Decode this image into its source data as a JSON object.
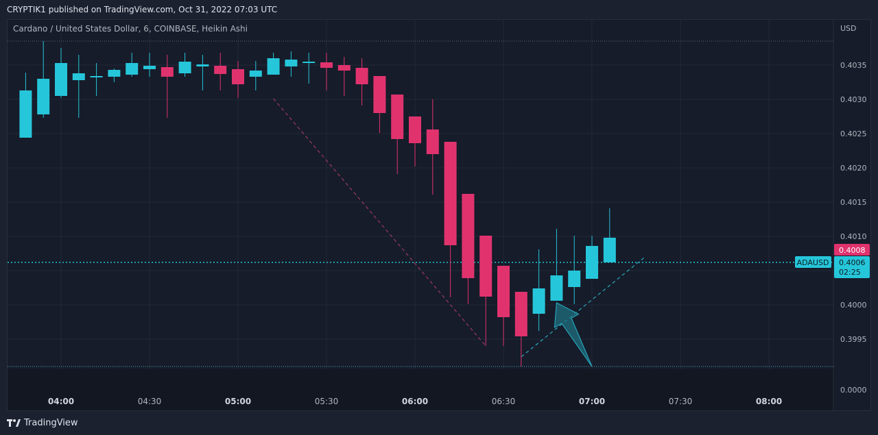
{
  "header": {
    "publish_line": "CRYPTIK1 published on TradingView.com, Oct 31, 2022 07:03 UTC"
  },
  "footer": {
    "brand": "TradingView"
  },
  "colors": {
    "up": "#26c6da",
    "down": "#e0336e",
    "grid": "#222938",
    "text": "#b2b5be",
    "pane": "#161c2a"
  },
  "chart_data": {
    "type": "candlestick",
    "title": "Cardano / United States Dollar, 6, COINBASE, Heikin Ashi",
    "currency": "USD",
    "symbol": "ADAUSD",
    "x_unit": "time",
    "x_ticks": [
      "04:00",
      "04:30",
      "05:00",
      "05:30",
      "06:00",
      "06:30",
      "07:00",
      "07:30",
      "08:00"
    ],
    "x_ticks_bold": [
      "04:00",
      "05:00",
      "06:00",
      "07:00",
      "08:00"
    ],
    "xlim": [
      "03:49",
      "08:22"
    ],
    "y_ticks": [
      "0.4035",
      "0.4030",
      "0.4025",
      "0.4020",
      "0.4015",
      "0.4010",
      "0.4005",
      "0.4000",
      "0.3995"
    ],
    "y_axis_bottom_label": "0.0000",
    "ylim": [
      0.39905,
      0.40385
    ],
    "candles": [
      {
        "t": "03:48",
        "o": 0.40244,
        "h": 0.40339,
        "l": 0.40244,
        "c": 0.40313
      },
      {
        "t": "03:54",
        "o": 0.40278,
        "h": 0.40385,
        "l": 0.40273,
        "c": 0.4033
      },
      {
        "t": "04:00",
        "o": 0.40305,
        "h": 0.40375,
        "l": 0.40302,
        "c": 0.40353
      },
      {
        "t": "04:06",
        "o": 0.40328,
        "h": 0.40365,
        "l": 0.40273,
        "c": 0.40338
      },
      {
        "t": "04:12",
        "o": 0.40334,
        "h": 0.40353,
        "l": 0.40305,
        "c": 0.40334
      },
      {
        "t": "04:18",
        "o": 0.40333,
        "h": 0.40345,
        "l": 0.40325,
        "c": 0.40343
      },
      {
        "t": "04:24",
        "o": 0.40336,
        "h": 0.40368,
        "l": 0.40333,
        "c": 0.40353
      },
      {
        "t": "04:30",
        "o": 0.40344,
        "h": 0.40368,
        "l": 0.40333,
        "c": 0.40349
      },
      {
        "t": "04:36",
        "o": 0.40347,
        "h": 0.40365,
        "l": 0.40273,
        "c": 0.40333
      },
      {
        "t": "04:42",
        "o": 0.40338,
        "h": 0.40368,
        "l": 0.40333,
        "c": 0.40355
      },
      {
        "t": "04:48",
        "o": 0.40348,
        "h": 0.40365,
        "l": 0.40313,
        "c": 0.40351
      },
      {
        "t": "04:54",
        "o": 0.40349,
        "h": 0.40368,
        "l": 0.40313,
        "c": 0.40337
      },
      {
        "t": "05:00",
        "o": 0.40344,
        "h": 0.40356,
        "l": 0.40302,
        "c": 0.40322
      },
      {
        "t": "05:06",
        "o": 0.40333,
        "h": 0.40356,
        "l": 0.40313,
        "c": 0.40342
      },
      {
        "t": "05:12",
        "o": 0.40336,
        "h": 0.40368,
        "l": 0.40336,
        "c": 0.4036
      },
      {
        "t": "05:18",
        "o": 0.40348,
        "h": 0.4037,
        "l": 0.40333,
        "c": 0.40358
      },
      {
        "t": "05:24",
        "o": 0.40353,
        "h": 0.40368,
        "l": 0.40323,
        "c": 0.40355
      },
      {
        "t": "05:30",
        "o": 0.40354,
        "h": 0.40368,
        "l": 0.40313,
        "c": 0.40346
      },
      {
        "t": "05:36",
        "o": 0.4035,
        "h": 0.40362,
        "l": 0.40305,
        "c": 0.40342
      },
      {
        "t": "05:42",
        "o": 0.40346,
        "h": 0.4036,
        "l": 0.40291,
        "c": 0.40322
      },
      {
        "t": "05:48",
        "o": 0.40334,
        "h": 0.40334,
        "l": 0.40251,
        "c": 0.4028
      },
      {
        "t": "05:54",
        "o": 0.40307,
        "h": 0.40307,
        "l": 0.40191,
        "c": 0.40242
      },
      {
        "t": "06:00",
        "o": 0.40275,
        "h": 0.40275,
        "l": 0.40202,
        "c": 0.40236
      },
      {
        "t": "06:06",
        "o": 0.40256,
        "h": 0.403,
        "l": 0.40161,
        "c": 0.4022
      },
      {
        "t": "06:12",
        "o": 0.40238,
        "h": 0.40238,
        "l": 0.40011,
        "c": 0.40087
      },
      {
        "t": "06:18",
        "o": 0.40162,
        "h": 0.40162,
        "l": 0.40001,
        "c": 0.40039
      },
      {
        "t": "06:24",
        "o": 0.40101,
        "h": 0.40101,
        "l": 0.3994,
        "c": 0.40012
      },
      {
        "t": "06:30",
        "o": 0.40057,
        "h": 0.40057,
        "l": 0.3994,
        "c": 0.39982
      },
      {
        "t": "06:36",
        "o": 0.40019,
        "h": 0.40019,
        "l": 0.3991,
        "c": 0.39954
      },
      {
        "t": "06:42",
        "o": 0.39987,
        "h": 0.40081,
        "l": 0.39962,
        "c": 0.40024
      },
      {
        "t": "06:48",
        "o": 0.40006,
        "h": 0.40111,
        "l": 0.40006,
        "c": 0.40043
      },
      {
        "t": "06:54",
        "o": 0.40026,
        "h": 0.40101,
        "l": 0.40001,
        "c": 0.4005
      },
      {
        "t": "07:00",
        "o": 0.40038,
        "h": 0.40101,
        "l": 0.40038,
        "c": 0.40086
      },
      {
        "t": "07:06",
        "o": 0.40062,
        "h": 0.40141,
        "l": 0.40062,
        "c": 0.40098
      }
    ],
    "last_price": {
      "label": "0.4006",
      "value": 0.40062,
      "countdown": "02:25"
    },
    "high_marker": {
      "label": "0.4008"
    },
    "top_dotted_level": 0.40385,
    "bottom_dotted_level": 0.3991,
    "drawings": {
      "downtrend_line": {
        "from": {
          "t": "05:12",
          "p": 0.40301
        },
        "to": {
          "t": "06:24",
          "p": 0.3994
        }
      },
      "uptrend_line": {
        "from": {
          "t": "06:36",
          "p": 0.39924
        },
        "to": {
          "t": "07:18",
          "p": 0.4007
        }
      },
      "arrow": {
        "from": {
          "t": "07:00",
          "p": 0.3991
        },
        "to": {
          "t": "06:48",
          "p": 0.40003
        }
      }
    }
  }
}
